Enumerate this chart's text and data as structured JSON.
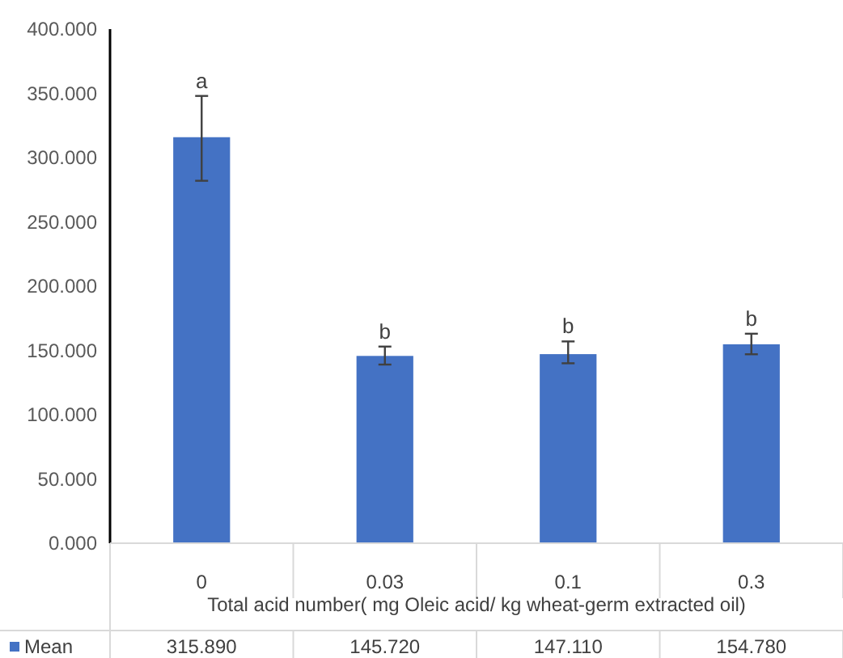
{
  "chart_data": {
    "type": "bar",
    "categories": [
      "0",
      "0.03",
      "0.1",
      "0.3"
    ],
    "series": [
      {
        "name": "Mean",
        "color": "#4472c4",
        "values": [
          315.89,
          145.72,
          147.11,
          154.78
        ],
        "value_labels": [
          "315.890",
          "145.720",
          "147.110",
          "154.780"
        ],
        "errors": [
          [
            282,
            348
          ],
          [
            139,
            153
          ],
          [
            140,
            157
          ],
          [
            147,
            163
          ]
        ]
      }
    ],
    "xlabel": "Total acid number( mg Oleic acid/ kg wheat-germ extracted oil)",
    "ylim": [
      0,
      400
    ],
    "yticks": [
      {
        "value": 0,
        "label": "0.000"
      },
      {
        "value": 50,
        "label": "50.000"
      },
      {
        "value": 100,
        "label": "100.000"
      },
      {
        "value": 150,
        "label": "150.000"
      },
      {
        "value": 200,
        "label": "200.000"
      },
      {
        "value": 250,
        "label": "250.000"
      },
      {
        "value": 300,
        "label": "300.000"
      },
      {
        "value": 350,
        "label": "350.000"
      },
      {
        "value": 400,
        "label": "400.000"
      }
    ],
    "annotations": [
      {
        "text": "a",
        "x": "0",
        "y": 348
      },
      {
        "text": "b",
        "x": "0.03",
        "y": 153
      },
      {
        "text": "b",
        "x": "0.1",
        "y": 157
      },
      {
        "text": "b",
        "x": "0.3",
        "y": 163
      }
    ],
    "legend": "bottom left"
  }
}
